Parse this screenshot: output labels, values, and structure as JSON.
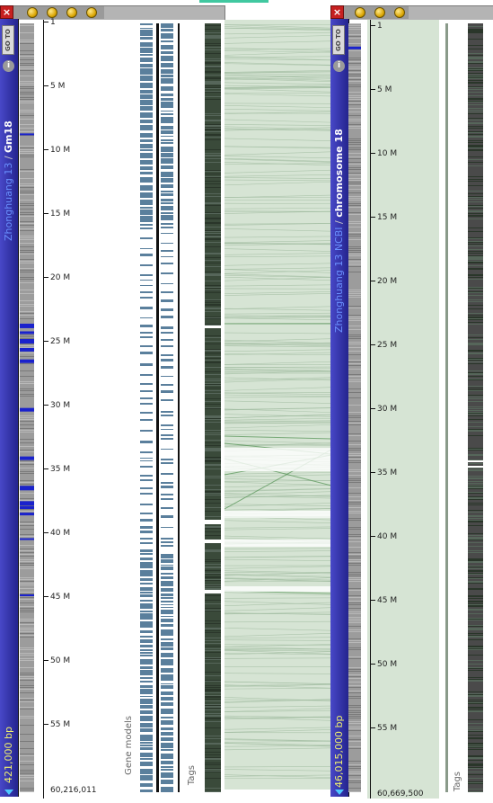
{
  "colors": {
    "sidebar": "#2c2c9c",
    "assembly_text": "#6a90ff",
    "bp_text": "#f0f070",
    "gene_model": "#5a7f9c",
    "tags_track": "#3a4a3a",
    "link": "#5f9a5f",
    "link_bg": "#d6e4d4",
    "close": "#c62020"
  },
  "left_panel": {
    "close_icon": "×",
    "goto_label": "GO TO",
    "info_icon": "i",
    "assembly": "Zhonghuang 13",
    "separator": " / ",
    "chromosome": "Gm18",
    "bp_label": "421,000 bp",
    "ruler": {
      "max_bp": 60216011,
      "ticks": [
        1,
        5,
        10,
        15,
        20,
        25,
        30,
        35,
        40,
        45,
        50,
        55
      ],
      "tick_labels": [
        "1",
        "5 M",
        "10 M",
        "15 M",
        "20 M",
        "25 M",
        "30 M",
        "35 M",
        "40 M",
        "45 M",
        "50 M",
        "55 M"
      ],
      "end_label": "60,216,011"
    },
    "gene_models_label": "Gene models",
    "tags_label": "Tags",
    "highlights_mb": [
      8.9,
      23.8,
      24.4,
      25.0,
      25.7,
      26.6,
      30.4,
      34.2,
      36.5,
      37.7,
      38.1,
      38.6,
      40.6,
      45.0
    ]
  },
  "right_panel": {
    "close_icon": "×",
    "goto_label": "GO TO",
    "info_icon": "i",
    "assembly": "Zhonghuang 13 NCBI",
    "separator": " / ",
    "chromosome": "chromosome 18",
    "bp_label": "46,015,000 bp",
    "ruler": {
      "max_bp": 60669500,
      "ticks": [
        1,
        5,
        10,
        15,
        20,
        25,
        30,
        35,
        40,
        45,
        50,
        55
      ],
      "tick_labels": [
        "1",
        "5 M",
        "10 M",
        "15 M",
        "20 M",
        "25 M",
        "30 M",
        "35 M",
        "40 M",
        "45 M",
        "50 M",
        "55 M"
      ],
      "end_label": "60,669,500"
    },
    "tags_label": "Tags",
    "highlights_mb": [
      2.1
    ]
  }
}
